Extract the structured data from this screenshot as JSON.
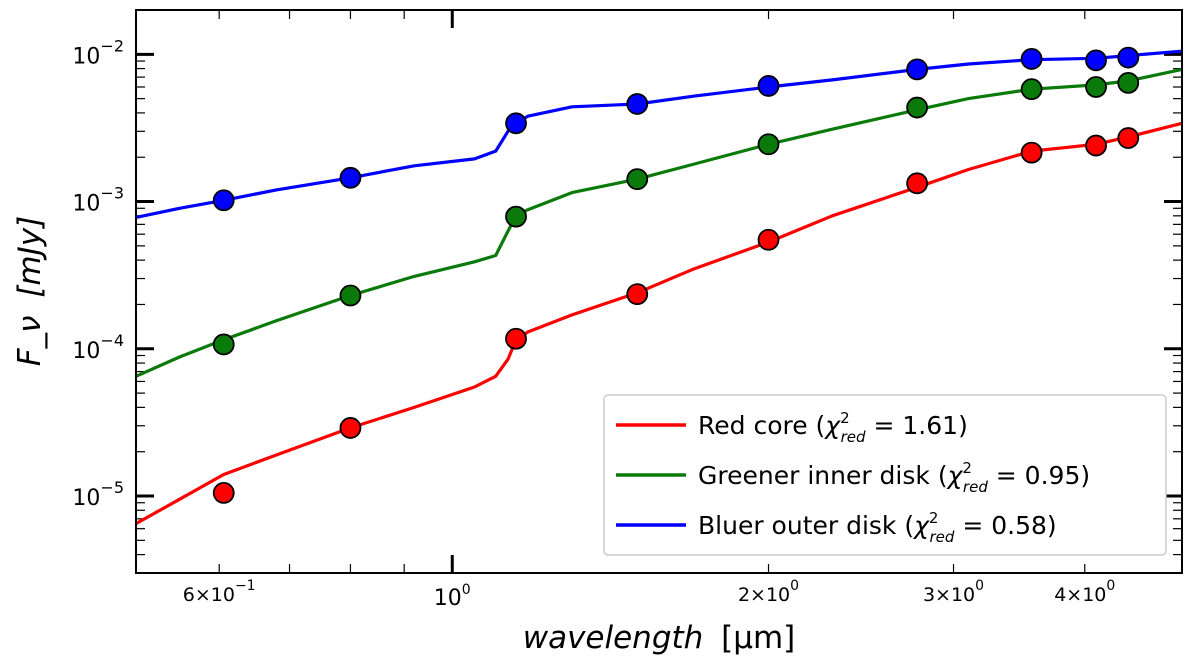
{
  "chart_data": {
    "type": "line",
    "title": "",
    "xlabel": "wavelength",
    "xlabel_unit": "[μm]",
    "ylabel": "F_ν",
    "ylabel_unit": "[mJy]",
    "xscale": "log",
    "yscale": "log",
    "xlim": [
      0.5,
      4.95
    ],
    "ylim": [
      3e-06,
      0.02
    ],
    "x_major_ticks": [
      {
        "value": 0.6,
        "base": "6×10",
        "exp": "−1"
      },
      {
        "value": 1.0,
        "base": "10",
        "exp": "0"
      },
      {
        "value": 2.0,
        "base": "2×10",
        "exp": "0"
      },
      {
        "value": 3.0,
        "base": "3×10",
        "exp": "0"
      },
      {
        "value": 4.0,
        "base": "4×10",
        "exp": "0"
      }
    ],
    "y_major_ticks": [
      {
        "value": 0.01,
        "base": "10",
        "exp": "−2"
      },
      {
        "value": 0.001,
        "base": "10",
        "exp": "−3"
      },
      {
        "value": 0.0001,
        "base": "10",
        "exp": "−4"
      },
      {
        "value": 1e-05,
        "base": "10",
        "exp": "−5"
      }
    ],
    "legend_position": "lower-right",
    "series": [
      {
        "name": "Red core",
        "chi2": "1.61",
        "color": "#ff0000",
        "points_x": [
          0.606,
          0.8,
          1.15,
          1.5,
          2.0,
          2.77,
          3.56,
          4.1,
          4.4
        ],
        "points_y": [
          1.05e-05,
          2.9e-05,
          0.000117,
          0.000235,
          0.00055,
          0.00133,
          0.00215,
          0.0024,
          0.0027
        ],
        "model_x": [
          0.5,
          0.55,
          0.606,
          0.68,
          0.8,
          0.92,
          1.05,
          1.1,
          1.13,
          1.15,
          1.18,
          1.3,
          1.5,
          1.7,
          2.0,
          2.3,
          2.77,
          3.1,
          3.56,
          4.1,
          4.4,
          4.95
        ],
        "model_y": [
          6.5e-06,
          9.5e-06,
          1.4e-05,
          1.9e-05,
          2.9e-05,
          4e-05,
          5.5e-05,
          6.5e-05,
          8.5e-05,
          0.000115,
          0.00013,
          0.00017,
          0.00024,
          0.00035,
          0.00053,
          0.0008,
          0.00125,
          0.00165,
          0.0022,
          0.00245,
          0.00275,
          0.0034
        ]
      },
      {
        "name": "Greener inner disk",
        "chi2": "0.95",
        "color": "#0a7a0a",
        "points_x": [
          0.606,
          0.8,
          1.15,
          1.5,
          2.0,
          2.77,
          3.56,
          4.1,
          4.4
        ],
        "points_y": [
          0.000107,
          0.00023,
          0.00079,
          0.00142,
          0.00245,
          0.00435,
          0.0058,
          0.006,
          0.0064
        ],
        "model_x": [
          0.5,
          0.55,
          0.606,
          0.68,
          0.8,
          0.92,
          1.05,
          1.1,
          1.13,
          1.15,
          1.18,
          1.3,
          1.5,
          1.7,
          2.0,
          2.3,
          2.77,
          3.1,
          3.56,
          4.1,
          4.4,
          4.95
        ],
        "model_y": [
          6.5e-05,
          8.8e-05,
          0.000115,
          0.000155,
          0.00023,
          0.00031,
          0.00039,
          0.00043,
          0.00063,
          0.0008,
          0.00088,
          0.00115,
          0.00142,
          0.0018,
          0.00245,
          0.0031,
          0.0042,
          0.005,
          0.0058,
          0.0062,
          0.0066,
          0.0079
        ]
      },
      {
        "name": "Bluer outer disk",
        "chi2": "0.58",
        "color": "#0000ff",
        "points_x": [
          0.606,
          0.8,
          1.15,
          1.5,
          2.0,
          2.77,
          3.56,
          4.1,
          4.4
        ],
        "points_y": [
          0.00102,
          0.00145,
          0.0034,
          0.0046,
          0.0061,
          0.0079,
          0.0093,
          0.0091,
          0.0095
        ],
        "model_x": [
          0.5,
          0.55,
          0.606,
          0.68,
          0.8,
          0.92,
          1.05,
          1.1,
          1.13,
          1.15,
          1.18,
          1.3,
          1.5,
          1.7,
          2.0,
          2.3,
          2.77,
          3.1,
          3.56,
          4.1,
          4.4,
          4.95
        ],
        "model_y": [
          0.00078,
          0.0009,
          0.00102,
          0.0012,
          0.00145,
          0.00175,
          0.00195,
          0.0022,
          0.003,
          0.0034,
          0.0038,
          0.0044,
          0.0046,
          0.0052,
          0.006,
          0.0067,
          0.0079,
          0.0086,
          0.0092,
          0.0094,
          0.0098,
          0.0105
        ]
      }
    ]
  }
}
